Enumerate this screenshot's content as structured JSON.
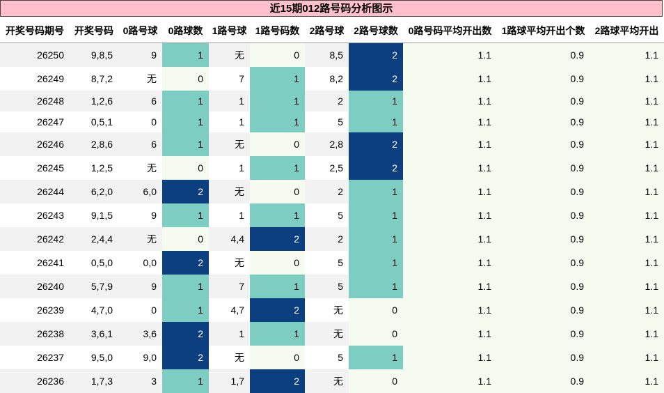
{
  "title": "近15期012路号码分析图示",
  "headers": [
    "开奖号码期号",
    "开奖号码",
    "0路号球",
    "0路球数",
    "1路号球",
    "1路号码数",
    "2路号球",
    "2路号球数",
    "0路号码平均开出数",
    "1路球平均开出个数",
    "2路球平均开出"
  ],
  "colors": {
    "count_0": "#f5fbef",
    "count_1": "#7dcdc2",
    "count_2": "#0b3f7f",
    "header_bg": "#ffc0cb"
  },
  "rows": [
    [
      "26250",
      "9,8,5",
      "9",
      "1",
      "无",
      "0",
      "8,5",
      "2",
      "1.1",
      "0.9",
      "1.1"
    ],
    [
      "26249",
      "8,7,2",
      "无",
      "0",
      "7",
      "1",
      "8,2",
      "2",
      "1.1",
      "0.9",
      "1.1"
    ],
    [
      "26248",
      "1,2,6",
      "6",
      "1",
      "1",
      "1",
      "2",
      "1",
      "1.1",
      "0.9",
      "1.1"
    ],
    [
      "26247",
      "0,5,1",
      "0",
      "1",
      "1",
      "1",
      "5",
      "1",
      "1.1",
      "0.9",
      "1.1"
    ],
    [
      "26246",
      "2,8,6",
      "6",
      "1",
      "无",
      "0",
      "2,8",
      "2",
      "1.1",
      "0.9",
      "1.1"
    ],
    [
      "26245",
      "1,2,5",
      "无",
      "0",
      "1",
      "1",
      "2,5",
      "2",
      "1.1",
      "0.9",
      "1.1"
    ],
    [
      "26244",
      "6,2,0",
      "6,0",
      "2",
      "无",
      "0",
      "2",
      "1",
      "1.1",
      "0.9",
      "1.1"
    ],
    [
      "26243",
      "9,1,5",
      "9",
      "1",
      "1",
      "1",
      "5",
      "1",
      "1.1",
      "0.9",
      "1.1"
    ],
    [
      "26242",
      "2,4,4",
      "无",
      "0",
      "4,4",
      "2",
      "2",
      "1",
      "1.1",
      "0.9",
      "1.1"
    ],
    [
      "26241",
      "0,5,0",
      "0,0",
      "2",
      "无",
      "0",
      "5",
      "1",
      "1.1",
      "0.9",
      "1.1"
    ],
    [
      "26240",
      "5,7,9",
      "9",
      "1",
      "7",
      "1",
      "5",
      "1",
      "1.1",
      "0.9",
      "1.1"
    ],
    [
      "26239",
      "4,7,0",
      "0",
      "1",
      "4,7",
      "2",
      "无",
      "0",
      "1.1",
      "0.9",
      "1.1"
    ],
    [
      "26238",
      "3,6,1",
      "3,6",
      "2",
      "1",
      "1",
      "无",
      "0",
      "1.1",
      "0.9",
      "1.1"
    ],
    [
      "26237",
      "9,5,0",
      "9,0",
      "2",
      "无",
      "0",
      "5",
      "1",
      "1.1",
      "0.9",
      "1.1"
    ],
    [
      "26236",
      "1,7,3",
      "3",
      "1",
      "1,7",
      "2",
      "无",
      "0",
      "1.1",
      "0.9",
      "1.1"
    ]
  ]
}
